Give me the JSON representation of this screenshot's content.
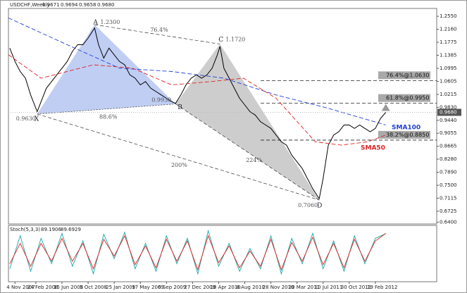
{
  "header": {
    "symbol": "USDCHF,Weekly",
    "ohlc": [
      "0.9671",
      "0.9694",
      "0.9658",
      "0.9680"
    ]
  },
  "chart_data": [
    {
      "type": "line",
      "xlim": [
        -5,
        323
      ],
      "ylim": [
        0.6344,
        1.2784
      ],
      "xticks": [
        {
          "value": 0,
          "label": "4 Nov 2007"
        },
        {
          "value": 16,
          "label": "24 Feb 2008"
        },
        {
          "value": 36,
          "label": "15 Jun 2008"
        },
        {
          "value": 56,
          "label": "5 Oct 2008"
        },
        {
          "value": 76,
          "label": "25 Jan 2009"
        },
        {
          "value": 96,
          "label": "17 May 2009"
        },
        {
          "value": 116,
          "label": "6 Sep 2009"
        },
        {
          "value": 136,
          "label": "27 Dec 2009"
        },
        {
          "value": 156,
          "label": "18 Apr 2010"
        },
        {
          "value": 176,
          "label": "8 Aug 2010"
        },
        {
          "value": 196,
          "label": "28 Nov 2010"
        },
        {
          "value": 216,
          "label": "20 Mar 2011"
        },
        {
          "value": 236,
          "label": "10 Jul 2011"
        },
        {
          "value": 256,
          "label": "30 Oct 2011"
        },
        {
          "value": 276,
          "label": "19 Feb 2012"
        }
      ],
      "yticks": [
        {
          "value": 1.255,
          "label": "1.2550"
        },
        {
          "value": 1.216,
          "label": "1.2160"
        },
        1.1775,
        1.1385,
        1.0995,
        1.0605,
        1.0215,
        {
          "value": 0.983,
          "label": "0.9830"
        },
        {
          "value": 0.944,
          "label": "0.9440"
        },
        0.9055,
        0.8665,
        {
          "value": 0.828,
          "label": "0.8280"
        },
        {
          "value": 0.789,
          "label": "0.7890"
        },
        {
          "value": 0.75,
          "label": "0.7500"
        },
        0.7115,
        0.6725,
        {
          "value": 0.64,
          "label": "0.6400"
        }
      ],
      "series": [
        {
          "color": "#000000",
          "x": [
            -4,
            0,
            4,
            8,
            12,
            17,
            20,
            24,
            28,
            32,
            36,
            40,
            44,
            48,
            52,
            56,
            61,
            64,
            68,
            72,
            76,
            80,
            84,
            88,
            92,
            96,
            100,
            104,
            108,
            112,
            116,
            120,
            123,
            127,
            131,
            135,
            139,
            143,
            147,
            151,
            155,
            157,
            160,
            164,
            168,
            172,
            176,
            180,
            184,
            188,
            192,
            196,
            200,
            204,
            208,
            212,
            216,
            220,
            224,
            228,
            233,
            236,
            240,
            244,
            248,
            252,
            256,
            260,
            264,
            268,
            272,
            276,
            280,
            284
          ],
          "values": [
            1.16,
            1.12,
            1.09,
            1.07,
            1.02,
            0.97,
            1.0,
            1.04,
            1.06,
            1.08,
            1.1,
            1.12,
            1.15,
            1.17,
            1.17,
            1.19,
            1.22,
            1.17,
            1.13,
            1.16,
            1.14,
            1.12,
            1.11,
            1.08,
            1.07,
            1.05,
            1.06,
            1.04,
            1.03,
            1.02,
            1.01,
            1.0,
            0.995,
            1.02,
            1.05,
            1.07,
            1.08,
            1.07,
            1.08,
            1.1,
            1.14,
            1.165,
            1.1,
            1.07,
            1.04,
            1.01,
            0.99,
            0.97,
            0.96,
            0.94,
            0.93,
            0.92,
            0.9,
            0.88,
            0.87,
            0.84,
            0.82,
            0.8,
            0.77,
            0.74,
            0.71,
            0.77,
            0.87,
            0.9,
            0.91,
            0.93,
            0.93,
            0.92,
            0.93,
            0.92,
            0.91,
            0.92,
            0.95,
            0.968
          ]
        },
        {
          "name": "SMA100",
          "color": "#1f3fd6",
          "x": [
            -5,
            40,
            80,
            120,
            160,
            200,
            240,
            284
          ],
          "values": [
            1.25,
            1.17,
            1.1,
            1.09,
            1.07,
            1.02,
            0.98,
            0.93
          ]
        },
        {
          "name": "SMA50",
          "color": "#dd2222",
          "x": [
            -5,
            20,
            60,
            90,
            120,
            150,
            175,
            200,
            230,
            250,
            270,
            284
          ],
          "values": [
            1.14,
            1.07,
            1.11,
            1.1,
            1.05,
            1.06,
            1.07,
            1.01,
            0.88,
            0.87,
            0.88,
            0.9
          ]
        }
      ],
      "points": [
        {
          "label": "X",
          "value": 0.963,
          "value_label": "0.9630",
          "x": 17
        },
        {
          "label": "A",
          "value": 1.23,
          "value_label": "1.2300",
          "x": 61
        },
        {
          "label": "B",
          "value": 0.993,
          "value_label": "0.9930",
          "x": 123
        },
        {
          "label": "C",
          "value": 1.172,
          "value_label": "1.1720",
          "x": 157
        },
        {
          "label": "D",
          "value": 0.706,
          "value_label": "0.7060",
          "x": 233
        }
      ],
      "ratios": [
        "76.4%",
        "88.6%",
        "200%",
        "224%"
      ],
      "levels": [
        {
          "label": "76.4%@1.0630",
          "value": 1.063
        },
        {
          "label": "61.8%@0.9950",
          "value": 0.995
        },
        {
          "label": "38.2%@0.8850",
          "value": 0.885
        }
      ]
    },
    {
      "type": "line",
      "title": "Stoch(5,3,3)",
      "ylim": [
        0,
        100
      ],
      "series": [
        {
          "color": "#1aa6a6",
          "x": [
            -4,
            4,
            12,
            20,
            28,
            36,
            44,
            52,
            60,
            68,
            76,
            84,
            92,
            100,
            108,
            116,
            124,
            132,
            140,
            148,
            156,
            164,
            172,
            180,
            188,
            196,
            204,
            212,
            220,
            228,
            236,
            244,
            252,
            260,
            268,
            276,
            284
          ],
          "values": [
            20,
            85,
            15,
            80,
            30,
            90,
            25,
            75,
            10,
            88,
            40,
            92,
            20,
            70,
            15,
            85,
            30,
            80,
            10,
            95,
            25,
            70,
            15,
            60,
            20,
            85,
            10,
            80,
            30,
            90,
            20,
            75,
            15,
            85,
            30,
            80,
            89.1906
          ]
        },
        {
          "color": "#e02020",
          "x": [
            -4,
            4,
            12,
            20,
            28,
            36,
            44,
            52,
            60,
            68,
            76,
            84,
            92,
            100,
            108,
            116,
            124,
            132,
            140,
            148,
            156,
            164,
            172,
            180,
            188,
            196,
            204,
            212,
            220,
            228,
            236,
            244,
            252,
            260,
            268,
            276,
            284
          ],
          "values": [
            30,
            70,
            25,
            70,
            35,
            80,
            35,
            70,
            20,
            78,
            45,
            85,
            28,
            65,
            22,
            78,
            35,
            75,
            18,
            85,
            32,
            65,
            22,
            55,
            25,
            78,
            18,
            72,
            35,
            82,
            28,
            70,
            22,
            78,
            35,
            75,
            89.6929
          ]
        }
      ]
    }
  ]
}
